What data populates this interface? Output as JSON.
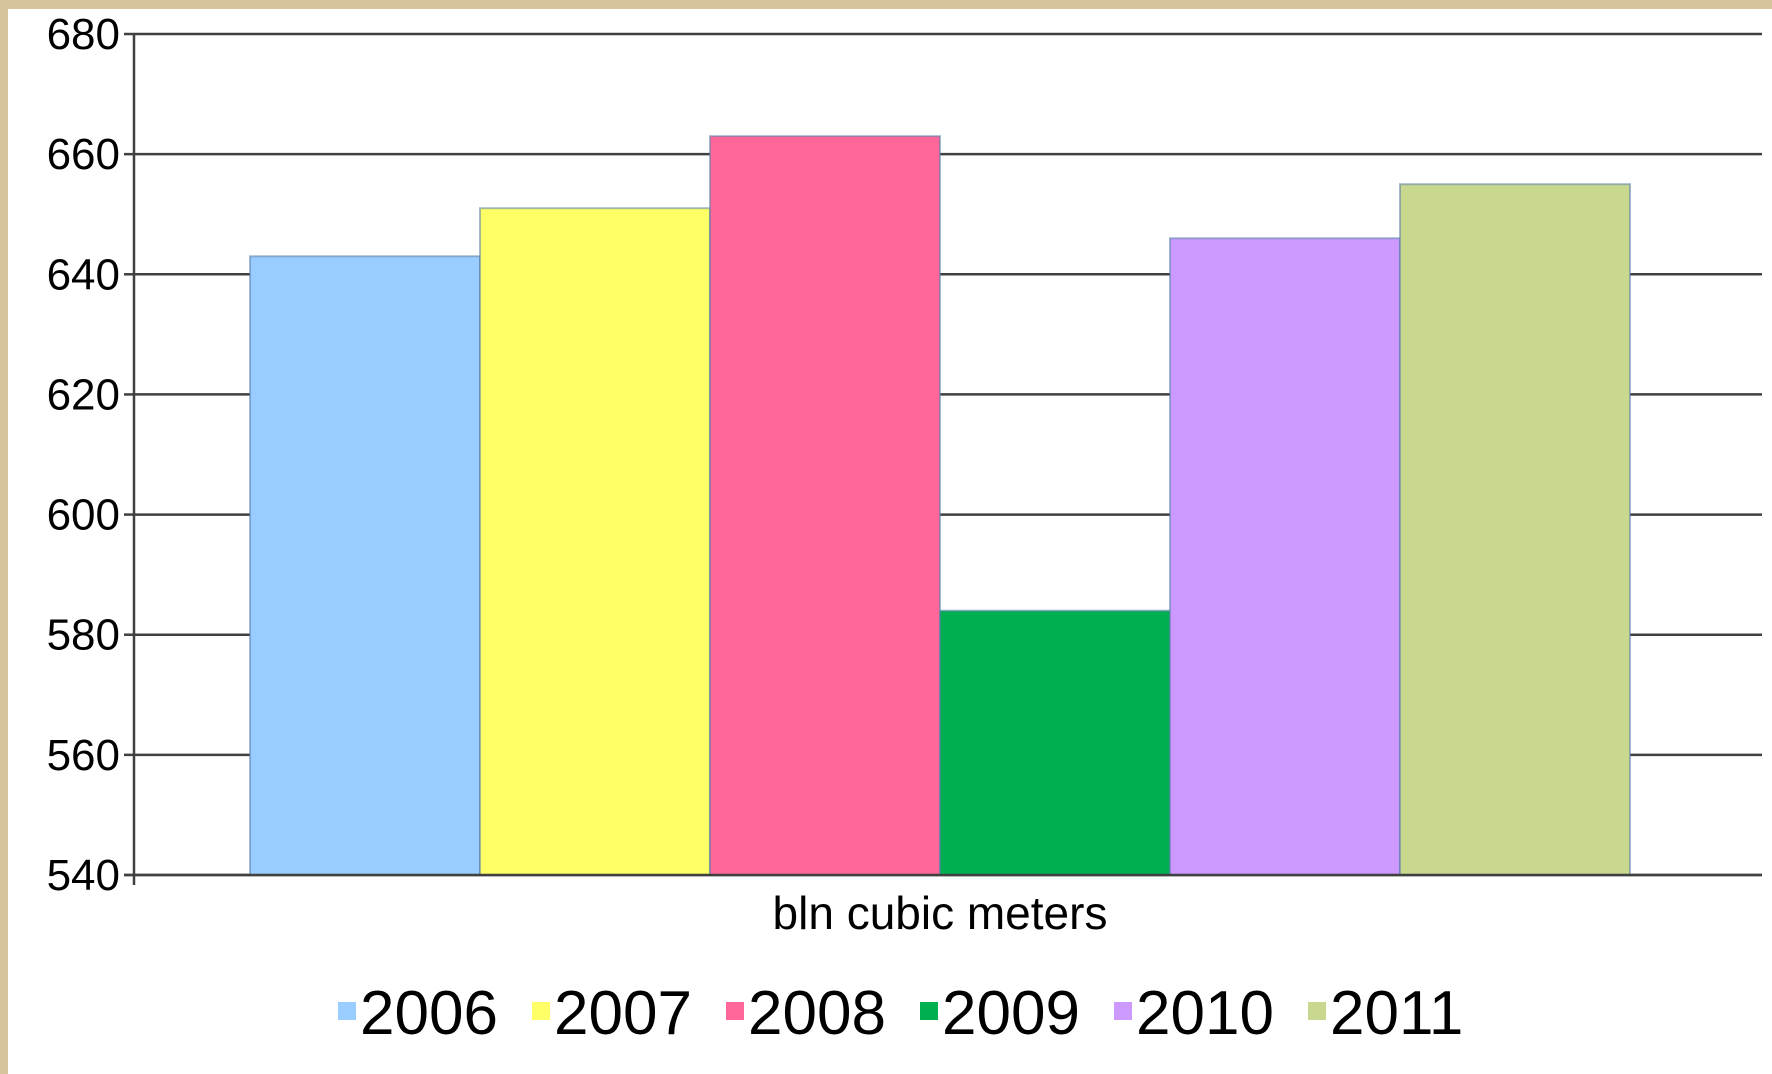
{
  "chart_data": {
    "type": "bar",
    "categories": [
      "bln cubic meters"
    ],
    "series": [
      {
        "name": "2006",
        "values": [
          643
        ],
        "color": "#99ccff"
      },
      {
        "name": "2007",
        "values": [
          651
        ],
        "color": "#ffff66"
      },
      {
        "name": "2008",
        "values": [
          663
        ],
        "color": "#ff6699"
      },
      {
        "name": "2009",
        "values": [
          584
        ],
        "color": "#00b050"
      },
      {
        "name": "2010",
        "values": [
          646
        ],
        "color": "#cc99ff"
      },
      {
        "name": "2011",
        "values": [
          655
        ],
        "color": "#c8d88e"
      }
    ],
    "title": "",
    "xlabel": "bln cubic meters",
    "ylabel": "",
    "ylim": [
      540,
      680
    ],
    "yticks": [
      "540",
      "560",
      "580",
      "600",
      "620",
      "640",
      "660",
      "680"
    ],
    "grid": true,
    "legend_position": "bottom"
  }
}
